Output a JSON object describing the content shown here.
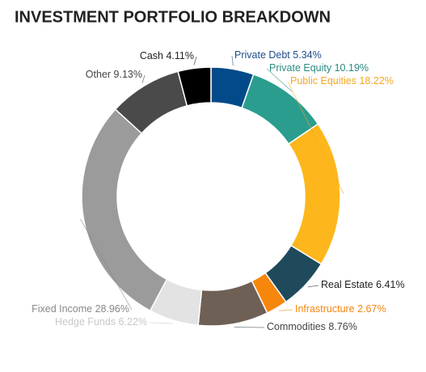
{
  "chart_data": {
    "type": "donut",
    "title": "INVESTMENT PORTFOLIO BREAKDOWN",
    "categories": [
      "Private Debt",
      "Private Equity",
      "Public Equities",
      "Real Estate",
      "Infrastructure",
      "Commodities",
      "Hedge Funds",
      "Fixed Income",
      "Other",
      "Cash"
    ],
    "values": [
      5.34,
      10.19,
      18.22,
      6.41,
      2.67,
      8.76,
      6.22,
      28.96,
      9.13,
      4.11
    ],
    "value_labels": [
      "5.34%",
      "10.19%",
      "18.22%",
      "6.41%",
      "2.67%",
      "8.76%",
      "6.22%",
      "28.96%",
      "9.13%",
      "4.11%"
    ],
    "colors": [
      "#034a8a",
      "#2a9d8f",
      "#fdb71c",
      "#1f4a5c",
      "#f7860d",
      "#6f6056",
      "#e3e3e3",
      "#9b9b9b",
      "#4a4a4a",
      "#000000"
    ]
  }
}
